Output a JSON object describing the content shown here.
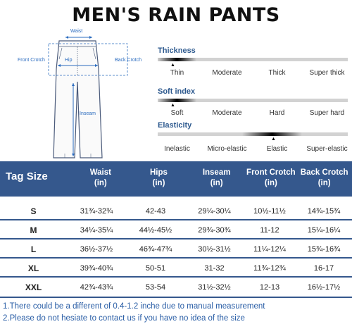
{
  "title": "MEN'S RAIN PANTS",
  "diagram": {
    "labels": {
      "waist": "Waist",
      "front_crotch": "Front Crotch",
      "hip": "Hip",
      "back_crotch": "Back Crotch",
      "inseam": "Inseam"
    }
  },
  "scales": [
    {
      "title": "Thickness",
      "options": [
        "Thin",
        "Moderate",
        "Thick",
        "Super thick"
      ],
      "selected_index": 0
    },
    {
      "title": "Soft index",
      "options": [
        "Soft",
        "Moderate",
        "Hard",
        "Super hard"
      ],
      "selected_index": 0
    },
    {
      "title": "Elasticity",
      "options": [
        "Inelastic",
        "Micro-elastic",
        "Elastic",
        "Super-elastic"
      ],
      "selected_index": 2
    }
  ],
  "table": {
    "headers": [
      {
        "line1": "Tag Size",
        "line2": ""
      },
      {
        "line1": "Waist",
        "line2": "(in)"
      },
      {
        "line1": "Hips",
        "line2": "(in)"
      },
      {
        "line1": "Inseam",
        "line2": "(in)"
      },
      {
        "line1": "Front Crotch",
        "line2": "(in)"
      },
      {
        "line1": "Back Crotch",
        "line2": "(in)"
      }
    ],
    "rows": [
      [
        "S",
        "31¾-32¾",
        "42-43",
        "29¼-30¼",
        "10½-11½",
        "14¾-15¾"
      ],
      [
        "M",
        "34¼-35¼",
        "44½-45½",
        "29¾-30¾",
        "11-12",
        "15¼-16¼"
      ],
      [
        "L",
        "36½-37½",
        "46¾-47¾",
        "30½-31½",
        "11¼-12¼",
        "15¾-16¾"
      ],
      [
        "XL",
        "39¾-40¾",
        "50-51",
        "31-32",
        "11¾-12¾",
        "16-17"
      ],
      [
        "XXL",
        "42¾-43¾",
        "53-54",
        "31½-32½",
        "12-13",
        "16½-17½"
      ]
    ]
  },
  "notes": [
    "1.There could be a different of 0.4-1.2 inche due to manual measurement",
    "2.Please do not hesiate to contact us if you have no idea of the size"
  ],
  "colors": {
    "header_bg": "#35588d",
    "label_blue": "#2a6bbf",
    "scale_title": "#2e5a8f"
  },
  "icons": {
    "scale_marker": "caret-up"
  }
}
